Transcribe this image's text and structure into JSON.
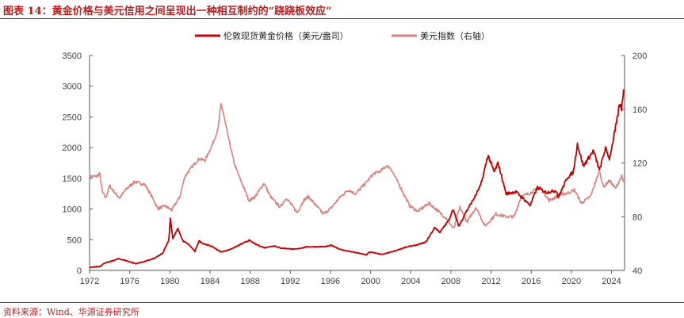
{
  "figure": {
    "title": "图表 14：黄金价格与美元信用之间呈现出一种相互制约的“跷跷板效应”",
    "source": "资料来源：Wind、华源证券研究所"
  },
  "chart_data": {
    "type": "line",
    "legend_position": "top-center",
    "grid": false,
    "x_ticks": [
      1972,
      1976,
      1980,
      1984,
      1988,
      1992,
      1996,
      2000,
      2004,
      2008,
      2012,
      2016,
      2020,
      2024
    ],
    "xlim": [
      1972,
      2025.3
    ],
    "y_left": {
      "lim": [
        0,
        3500
      ],
      "ticks": [
        0,
        500,
        1000,
        1500,
        2000,
        2500,
        3000,
        3500
      ]
    },
    "y_right": {
      "lim": [
        40,
        200
      ],
      "ticks": [
        40,
        80,
        120,
        160,
        200
      ]
    },
    "series": [
      {
        "name": "伦敦现货黄金价格（美元/盎司）",
        "axis": "left",
        "color": "#c00000",
        "points": [
          [
            1972.0,
            46
          ],
          [
            1973.0,
            65
          ],
          [
            1973.5,
            120
          ],
          [
            1974.0,
            140
          ],
          [
            1974.9,
            190
          ],
          [
            1975.5,
            165
          ],
          [
            1976.6,
            110
          ],
          [
            1977.5,
            145
          ],
          [
            1978.5,
            200
          ],
          [
            1979.3,
            280
          ],
          [
            1979.9,
            500
          ],
          [
            1980.05,
            850
          ],
          [
            1980.3,
            520
          ],
          [
            1980.8,
            680
          ],
          [
            1981.3,
            480
          ],
          [
            1981.9,
            420
          ],
          [
            1982.5,
            310
          ],
          [
            1982.9,
            480
          ],
          [
            1983.3,
            440
          ],
          [
            1984.2,
            390
          ],
          [
            1985.1,
            300
          ],
          [
            1985.8,
            330
          ],
          [
            1986.5,
            380
          ],
          [
            1987.5,
            460
          ],
          [
            1987.9,
            490
          ],
          [
            1988.5,
            430
          ],
          [
            1989.4,
            370
          ],
          [
            1990.4,
            400
          ],
          [
            1991.0,
            365
          ],
          [
            1992.5,
            345
          ],
          [
            1993.7,
            385
          ],
          [
            1994.5,
            385
          ],
          [
            1995.5,
            385
          ],
          [
            1996.1,
            410
          ],
          [
            1997.0,
            340
          ],
          [
            1998.5,
            290
          ],
          [
            1999.6,
            255
          ],
          [
            1999.9,
            300
          ],
          [
            2001.2,
            260
          ],
          [
            2002.5,
            320
          ],
          [
            2003.5,
            380
          ],
          [
            2004.5,
            410
          ],
          [
            2005.5,
            460
          ],
          [
            2006.4,
            700
          ],
          [
            2006.9,
            620
          ],
          [
            2007.8,
            820
          ],
          [
            2008.2,
            1000
          ],
          [
            2008.8,
            720
          ],
          [
            2009.5,
            950
          ],
          [
            2010.4,
            1200
          ],
          [
            2011.0,
            1400
          ],
          [
            2011.7,
            1880
          ],
          [
            2012.3,
            1600
          ],
          [
            2012.7,
            1750
          ],
          [
            2013.5,
            1250
          ],
          [
            2014.5,
            1280
          ],
          [
            2015.9,
            1060
          ],
          [
            2016.6,
            1350
          ],
          [
            2017.5,
            1270
          ],
          [
            2018.5,
            1300
          ],
          [
            2018.7,
            1190
          ],
          [
            2019.6,
            1510
          ],
          [
            2020.2,
            1600
          ],
          [
            2020.6,
            2060
          ],
          [
            2021.2,
            1700
          ],
          [
            2022.2,
            1950
          ],
          [
            2022.8,
            1630
          ],
          [
            2023.4,
            1990
          ],
          [
            2023.8,
            1820
          ],
          [
            2024.2,
            2150
          ],
          [
            2024.5,
            2400
          ],
          [
            2024.8,
            2700
          ],
          [
            2025.0,
            2640
          ],
          [
            2025.2,
            2950
          ]
        ]
      },
      {
        "name": "美元指数（右轴）",
        "axis": "right",
        "color": "#d98080",
        "points": [
          [
            1972.0,
            110
          ],
          [
            1972.7,
            110
          ],
          [
            1973.0,
            112
          ],
          [
            1973.3,
            98
          ],
          [
            1973.6,
            94
          ],
          [
            1974.0,
            103
          ],
          [
            1974.5,
            98
          ],
          [
            1975.0,
            94
          ],
          [
            1975.7,
            101
          ],
          [
            1976.5,
            106
          ],
          [
            1977.5,
            104
          ],
          [
            1978.2,
            95
          ],
          [
            1978.8,
            86
          ],
          [
            1979.5,
            88
          ],
          [
            1980.2,
            85
          ],
          [
            1980.6,
            90
          ],
          [
            1981.0,
            95
          ],
          [
            1981.5,
            110
          ],
          [
            1982.3,
            118
          ],
          [
            1982.9,
            123
          ],
          [
            1983.5,
            122
          ],
          [
            1984.2,
            133
          ],
          [
            1984.8,
            145
          ],
          [
            1985.1,
            164
          ],
          [
            1985.3,
            158
          ],
          [
            1985.8,
            140
          ],
          [
            1986.4,
            120
          ],
          [
            1987.0,
            108
          ],
          [
            1987.9,
            92
          ],
          [
            1988.5,
            95
          ],
          [
            1989.4,
            105
          ],
          [
            1990.0,
            95
          ],
          [
            1991.0,
            87
          ],
          [
            1991.6,
            94
          ],
          [
            1992.7,
            83
          ],
          [
            1993.3,
            92
          ],
          [
            1993.8,
            95
          ],
          [
            1995.3,
            82
          ],
          [
            1996.0,
            86
          ],
          [
            1997.0,
            95
          ],
          [
            1997.8,
            100
          ],
          [
            1998.5,
            97
          ],
          [
            1999.5,
            105
          ],
          [
            2000.3,
            112
          ],
          [
            2001.0,
            114
          ],
          [
            2001.6,
            118
          ],
          [
            2002.0,
            116
          ],
          [
            2002.9,
            103
          ],
          [
            2003.9,
            88
          ],
          [
            2004.7,
            84
          ],
          [
            2005.8,
            90
          ],
          [
            2006.6,
            85
          ],
          [
            2007.5,
            79
          ],
          [
            2008.3,
            71
          ],
          [
            2008.9,
            87
          ],
          [
            2009.6,
            76
          ],
          [
            2010.5,
            87
          ],
          [
            2011.4,
            73
          ],
          [
            2012.5,
            82
          ],
          [
            2013.5,
            80
          ],
          [
            2014.3,
            80
          ],
          [
            2015.0,
            95
          ],
          [
            2016.0,
            98
          ],
          [
            2016.9,
            102
          ],
          [
            2017.8,
            92
          ],
          [
            2018.8,
            96
          ],
          [
            2019.8,
            98
          ],
          [
            2020.3,
            100
          ],
          [
            2021.0,
            90
          ],
          [
            2021.9,
            95
          ],
          [
            2022.8,
            114
          ],
          [
            2023.2,
            102
          ],
          [
            2023.8,
            107
          ],
          [
            2024.4,
            101
          ],
          [
            2024.8,
            107
          ],
          [
            2025.0,
            110
          ],
          [
            2025.2,
            106
          ],
          [
            2025.3,
            109
          ]
        ]
      }
    ]
  }
}
